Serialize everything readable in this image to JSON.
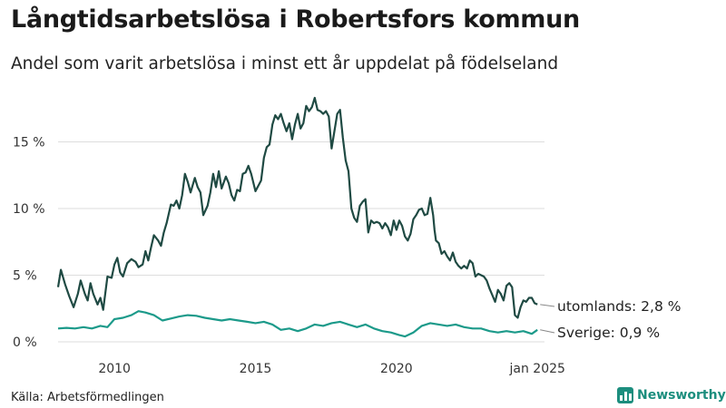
{
  "header": {
    "title": "Långtidsarbetslösa i Robertsfors kommun",
    "subtitle": "Andel som varit arbetslösa i minst ett år uppdelat på födelseland"
  },
  "footer": {
    "source": "Källa: Arbetsförmedlingen",
    "brand": "Newsworthy"
  },
  "colors": {
    "utomlands": "#1f4a43",
    "sverige": "#1c9a8a",
    "grid": "#dddddd",
    "brand": "#1c8e7e"
  },
  "chart_data": {
    "type": "line",
    "x_unit": "decimal year",
    "xlim": [
      2008.0,
      2025.25
    ],
    "ylim": [
      0,
      18.5
    ],
    "y_ticks": [
      {
        "value": 0,
        "label": "0 %"
      },
      {
        "value": 5,
        "label": "5 %"
      },
      {
        "value": 10,
        "label": "10 %"
      },
      {
        "value": 15,
        "label": "15 %"
      }
    ],
    "x_ticks": [
      {
        "value": 2010,
        "label": "2010"
      },
      {
        "value": 2015,
        "label": "2015"
      },
      {
        "value": 2020,
        "label": "2020"
      },
      {
        "value": 2025,
        "label": "jan 2025"
      }
    ],
    "grid": "horizontal",
    "series": [
      {
        "key": "utomlands",
        "end_label": "utomlands: 2,8 %",
        "points": [
          [
            2008.0,
            4.1
          ],
          [
            2008.1,
            5.4
          ],
          [
            2008.25,
            4.3
          ],
          [
            2008.4,
            3.4
          ],
          [
            2008.55,
            2.6
          ],
          [
            2008.7,
            3.6
          ],
          [
            2008.8,
            4.6
          ],
          [
            2008.95,
            3.6
          ],
          [
            2009.05,
            3.1
          ],
          [
            2009.15,
            4.4
          ],
          [
            2009.25,
            3.6
          ],
          [
            2009.4,
            2.8
          ],
          [
            2009.5,
            3.3
          ],
          [
            2009.6,
            2.4
          ],
          [
            2009.75,
            4.9
          ],
          [
            2009.9,
            4.8
          ],
          [
            2010.0,
            5.8
          ],
          [
            2010.1,
            6.3
          ],
          [
            2010.2,
            5.2
          ],
          [
            2010.3,
            4.9
          ],
          [
            2010.45,
            5.9
          ],
          [
            2010.6,
            6.2
          ],
          [
            2010.75,
            6.0
          ],
          [
            2010.85,
            5.6
          ],
          [
            2011.0,
            5.8
          ],
          [
            2011.1,
            6.8
          ],
          [
            2011.2,
            6.1
          ],
          [
            2011.3,
            7.1
          ],
          [
            2011.4,
            8.0
          ],
          [
            2011.55,
            7.6
          ],
          [
            2011.65,
            7.2
          ],
          [
            2011.75,
            8.2
          ],
          [
            2011.85,
            8.9
          ],
          [
            2012.0,
            10.3
          ],
          [
            2012.1,
            10.2
          ],
          [
            2012.2,
            10.6
          ],
          [
            2012.3,
            10.0
          ],
          [
            2012.4,
            11.0
          ],
          [
            2012.5,
            12.6
          ],
          [
            2012.6,
            12.0
          ],
          [
            2012.7,
            11.2
          ],
          [
            2012.85,
            12.3
          ],
          [
            2012.95,
            11.6
          ],
          [
            2013.05,
            11.2
          ],
          [
            2013.15,
            9.5
          ],
          [
            2013.3,
            10.2
          ],
          [
            2013.4,
            11.2
          ],
          [
            2013.5,
            12.6
          ],
          [
            2013.6,
            11.6
          ],
          [
            2013.7,
            12.8
          ],
          [
            2013.8,
            11.5
          ],
          [
            2013.95,
            12.4
          ],
          [
            2014.05,
            11.9
          ],
          [
            2014.15,
            11.0
          ],
          [
            2014.25,
            10.6
          ],
          [
            2014.35,
            11.4
          ],
          [
            2014.45,
            11.3
          ],
          [
            2014.55,
            12.6
          ],
          [
            2014.65,
            12.7
          ],
          [
            2014.75,
            13.2
          ],
          [
            2014.85,
            12.6
          ],
          [
            2015.0,
            11.3
          ],
          [
            2015.1,
            11.7
          ],
          [
            2015.2,
            12.1
          ],
          [
            2015.3,
            13.8
          ],
          [
            2015.4,
            14.6
          ],
          [
            2015.5,
            14.8
          ],
          [
            2015.6,
            16.3
          ],
          [
            2015.7,
            17.0
          ],
          [
            2015.8,
            16.7
          ],
          [
            2015.9,
            17.1
          ],
          [
            2016.0,
            16.4
          ],
          [
            2016.1,
            15.8
          ],
          [
            2016.2,
            16.4
          ],
          [
            2016.3,
            15.2
          ],
          [
            2016.4,
            16.3
          ],
          [
            2016.5,
            17.1
          ],
          [
            2016.6,
            16.0
          ],
          [
            2016.7,
            16.4
          ],
          [
            2016.8,
            17.7
          ],
          [
            2016.9,
            17.3
          ],
          [
            2017.0,
            17.6
          ],
          [
            2017.1,
            18.3
          ],
          [
            2017.2,
            17.4
          ],
          [
            2017.3,
            17.3
          ],
          [
            2017.4,
            17.1
          ],
          [
            2017.5,
            17.3
          ],
          [
            2017.6,
            16.9
          ],
          [
            2017.7,
            14.5
          ],
          [
            2017.8,
            15.8
          ],
          [
            2017.9,
            17.1
          ],
          [
            2018.0,
            17.4
          ],
          [
            2018.1,
            15.3
          ],
          [
            2018.2,
            13.6
          ],
          [
            2018.3,
            12.8
          ],
          [
            2018.4,
            10.0
          ],
          [
            2018.5,
            9.3
          ],
          [
            2018.6,
            9.0
          ],
          [
            2018.7,
            10.2
          ],
          [
            2018.8,
            10.5
          ],
          [
            2018.9,
            10.7
          ],
          [
            2019.0,
            8.2
          ],
          [
            2019.1,
            9.1
          ],
          [
            2019.2,
            8.9
          ],
          [
            2019.3,
            9.0
          ],
          [
            2019.4,
            8.9
          ],
          [
            2019.5,
            8.5
          ],
          [
            2019.6,
            8.9
          ],
          [
            2019.7,
            8.6
          ],
          [
            2019.8,
            8.0
          ],
          [
            2019.9,
            9.1
          ],
          [
            2020.0,
            8.4
          ],
          [
            2020.1,
            9.1
          ],
          [
            2020.2,
            8.7
          ],
          [
            2020.3,
            7.9
          ],
          [
            2020.4,
            7.6
          ],
          [
            2020.5,
            8.1
          ],
          [
            2020.6,
            9.2
          ],
          [
            2020.7,
            9.5
          ],
          [
            2020.8,
            9.9
          ],
          [
            2020.9,
            10.0
          ],
          [
            2021.0,
            9.5
          ],
          [
            2021.1,
            9.6
          ],
          [
            2021.2,
            10.8
          ],
          [
            2021.3,
            9.5
          ],
          [
            2021.35,
            8.4
          ],
          [
            2021.4,
            7.6
          ],
          [
            2021.5,
            7.4
          ],
          [
            2021.6,
            6.6
          ],
          [
            2021.7,
            6.8
          ],
          [
            2021.8,
            6.4
          ],
          [
            2021.9,
            6.1
          ],
          [
            2022.0,
            6.7
          ],
          [
            2022.1,
            6.0
          ],
          [
            2022.2,
            5.7
          ],
          [
            2022.3,
            5.5
          ],
          [
            2022.4,
            5.7
          ],
          [
            2022.5,
            5.5
          ],
          [
            2022.6,
            6.1
          ],
          [
            2022.7,
            5.9
          ],
          [
            2022.8,
            4.9
          ],
          [
            2022.9,
            5.1
          ],
          [
            2023.0,
            5.0
          ],
          [
            2023.1,
            4.9
          ],
          [
            2023.2,
            4.6
          ],
          [
            2023.3,
            4.0
          ],
          [
            2023.4,
            3.5
          ],
          [
            2023.5,
            3.0
          ],
          [
            2023.6,
            3.9
          ],
          [
            2023.7,
            3.6
          ],
          [
            2023.8,
            3.1
          ],
          [
            2023.9,
            4.2
          ],
          [
            2024.0,
            4.4
          ],
          [
            2024.1,
            4.1
          ],
          [
            2024.2,
            2.0
          ],
          [
            2024.3,
            1.8
          ],
          [
            2024.4,
            2.6
          ],
          [
            2024.5,
            3.1
          ],
          [
            2024.6,
            3.0
          ],
          [
            2024.7,
            3.3
          ],
          [
            2024.8,
            3.3
          ],
          [
            2024.9,
            2.9
          ],
          [
            2025.0,
            2.8
          ]
        ]
      },
      {
        "key": "sverige",
        "end_label": "Sverige: 0,9 %",
        "points": [
          [
            2008.0,
            1.0
          ],
          [
            2008.3,
            1.05
          ],
          [
            2008.6,
            1.0
          ],
          [
            2008.9,
            1.1
          ],
          [
            2009.2,
            1.0
          ],
          [
            2009.5,
            1.2
          ],
          [
            2009.75,
            1.1
          ],
          [
            2010.0,
            1.7
          ],
          [
            2010.3,
            1.8
          ],
          [
            2010.6,
            2.0
          ],
          [
            2010.85,
            2.3
          ],
          [
            2011.1,
            2.2
          ],
          [
            2011.4,
            2.0
          ],
          [
            2011.7,
            1.6
          ],
          [
            2012.0,
            1.75
          ],
          [
            2012.3,
            1.9
          ],
          [
            2012.6,
            2.0
          ],
          [
            2012.9,
            1.95
          ],
          [
            2013.2,
            1.8
          ],
          [
            2013.5,
            1.7
          ],
          [
            2013.8,
            1.6
          ],
          [
            2014.1,
            1.7
          ],
          [
            2014.4,
            1.6
          ],
          [
            2014.7,
            1.5
          ],
          [
            2015.0,
            1.4
          ],
          [
            2015.3,
            1.5
          ],
          [
            2015.6,
            1.3
          ],
          [
            2015.9,
            0.9
          ],
          [
            2016.2,
            1.0
          ],
          [
            2016.5,
            0.8
          ],
          [
            2016.8,
            1.0
          ],
          [
            2017.1,
            1.3
          ],
          [
            2017.4,
            1.2
          ],
          [
            2017.7,
            1.4
          ],
          [
            2018.0,
            1.5
          ],
          [
            2018.3,
            1.3
          ],
          [
            2018.6,
            1.1
          ],
          [
            2018.9,
            1.3
          ],
          [
            2019.2,
            1.0
          ],
          [
            2019.5,
            0.8
          ],
          [
            2019.8,
            0.7
          ],
          [
            2020.1,
            0.5
          ],
          [
            2020.3,
            0.4
          ],
          [
            2020.6,
            0.7
          ],
          [
            2020.9,
            1.2
          ],
          [
            2021.2,
            1.4
          ],
          [
            2021.5,
            1.3
          ],
          [
            2021.8,
            1.2
          ],
          [
            2022.1,
            1.3
          ],
          [
            2022.4,
            1.1
          ],
          [
            2022.7,
            1.0
          ],
          [
            2023.0,
            1.0
          ],
          [
            2023.3,
            0.8
          ],
          [
            2023.6,
            0.7
          ],
          [
            2023.9,
            0.8
          ],
          [
            2024.2,
            0.7
          ],
          [
            2024.5,
            0.8
          ],
          [
            2024.8,
            0.6
          ],
          [
            2025.0,
            0.9
          ]
        ]
      }
    ]
  }
}
